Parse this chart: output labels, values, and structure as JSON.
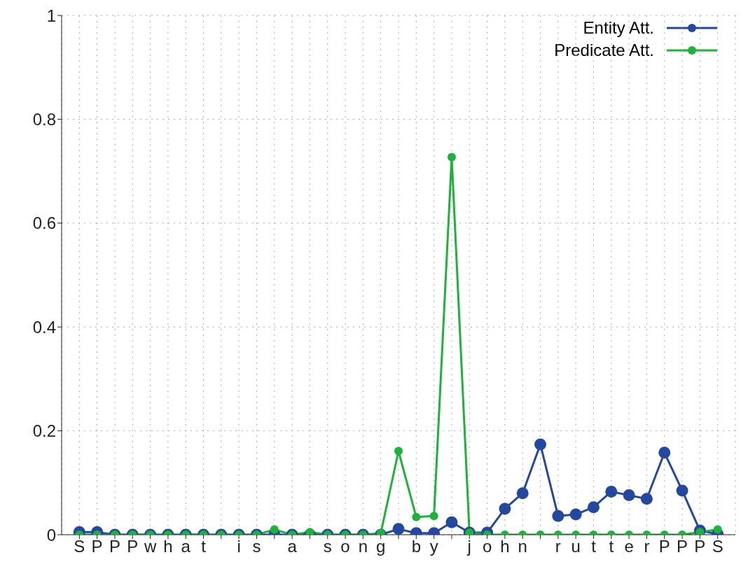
{
  "chart_data": {
    "type": "line",
    "categories": [
      "S",
      "P",
      "P",
      "P",
      "w",
      "h",
      "a",
      "t",
      null,
      "i",
      "s",
      null,
      "a",
      null,
      "s",
      "o",
      "n",
      "g",
      null,
      "b",
      "y",
      null,
      "j",
      "o",
      "h",
      "n",
      null,
      "r",
      "u",
      "t",
      "t",
      "e",
      "r",
      "P",
      "P",
      "P",
      "S"
    ],
    "series": [
      {
        "name": "Entity Att.",
        "color": "#2447a0",
        "values": [
          0.005,
          0.005,
          0,
          0,
          0,
          0,
          0,
          0,
          0,
          0,
          0,
          0,
          0,
          0,
          0,
          0,
          0,
          0,
          0.011,
          0.003,
          0.003,
          0.024,
          0.004,
          0.004,
          0.05,
          0.08,
          0.174,
          0.036,
          0.039,
          0.053,
          0.083,
          0.076,
          0.069,
          0.158,
          0.085,
          0.008,
          0.001
        ]
      },
      {
        "name": "Predicate Att.",
        "color": "#1db33a",
        "values": [
          0,
          0,
          0,
          0,
          0,
          0,
          0,
          0,
          0,
          0,
          0,
          0.01,
          0,
          0.005,
          0,
          0,
          0,
          0.003,
          0.161,
          0.034,
          0.036,
          0.727,
          0.004,
          0,
          0,
          0,
          0,
          0,
          0,
          0,
          0,
          0,
          0,
          0,
          0,
          0.005,
          0.01
        ]
      }
    ],
    "ylim": [
      0,
      1
    ],
    "yticks": [
      0,
      0.2,
      0.4,
      0.6,
      0.8,
      1
    ],
    "grid": true,
    "legend": "top right",
    "marker": "circle",
    "line_style": "solid"
  }
}
